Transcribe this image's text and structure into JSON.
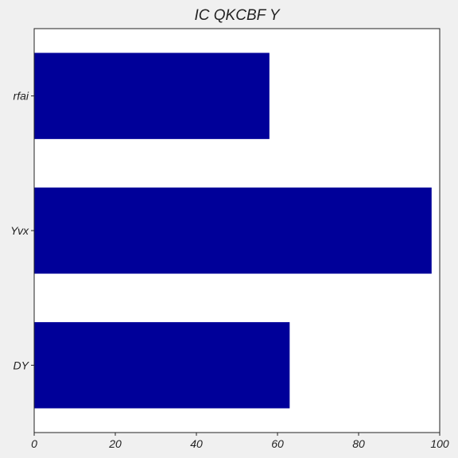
{
  "chart_data": {
    "type": "bar",
    "orientation": "horizontal",
    "title": "IC QKCBF Y",
    "xlabel": "",
    "ylabel": "",
    "categories": [
      "rfai",
      "Yvx",
      "DY"
    ],
    "values": [
      58,
      98,
      63
    ],
    "xlim": [
      0,
      100
    ],
    "xticks": [
      0,
      20,
      40,
      60,
      80,
      100
    ],
    "grid": false,
    "legend": "none",
    "bar_color": "#000099",
    "plot_background": "#ffffff",
    "figure_background": "#f0f0f0"
  }
}
